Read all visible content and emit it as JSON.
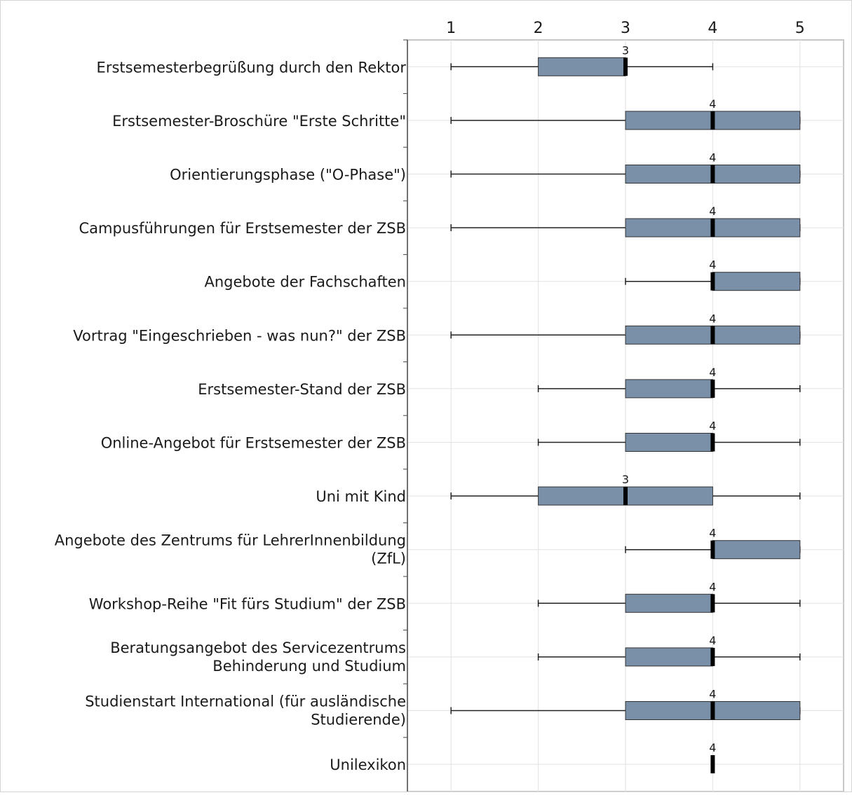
{
  "chart_data": {
    "type": "boxplot",
    "orientation": "horizontal",
    "x_ticks": [
      "1",
      "2",
      "3",
      "4",
      "5"
    ],
    "xlim": [
      0.5,
      5.5
    ],
    "grid": true,
    "box_color": "#7a8fa8",
    "median_color": "#000000",
    "rows": [
      {
        "label": [
          "Erstsemesterbegrüßung durch den Rektor"
        ],
        "min": 1,
        "q1": 2,
        "median": 3,
        "q3": 3,
        "max": 4,
        "median_label": "3"
      },
      {
        "label": [
          "Erstsemester-Broschüre \"Erste Schritte\""
        ],
        "min": 1,
        "q1": 3,
        "median": 4,
        "q3": 5,
        "max": 5,
        "median_label": "4"
      },
      {
        "label": [
          "Orientierungsphase (\"O-Phase\")"
        ],
        "min": 1,
        "q1": 3,
        "median": 4,
        "q3": 5,
        "max": 5,
        "median_label": "4"
      },
      {
        "label": [
          "Campusführungen für Erstsemester der ZSB"
        ],
        "min": 1,
        "q1": 3,
        "median": 4,
        "q3": 5,
        "max": 5,
        "median_label": "4"
      },
      {
        "label": [
          "Angebote der Fachschaften"
        ],
        "min": 3,
        "q1": 4,
        "median": 4,
        "q3": 5,
        "max": 5,
        "median_label": "4"
      },
      {
        "label": [
          "Vortrag \"Eingeschrieben - was nun?\" der ZSB"
        ],
        "min": 1,
        "q1": 3,
        "median": 4,
        "q3": 5,
        "max": 5,
        "median_label": "4"
      },
      {
        "label": [
          "Erstsemester-Stand der ZSB"
        ],
        "min": 2,
        "q1": 3,
        "median": 4,
        "q3": 4,
        "max": 5,
        "median_label": "4"
      },
      {
        "label": [
          "Online-Angebot für Erstsemester der ZSB"
        ],
        "min": 2,
        "q1": 3,
        "median": 4,
        "q3": 4,
        "max": 5,
        "median_label": "4"
      },
      {
        "label": [
          "Uni mit Kind"
        ],
        "min": 1,
        "q1": 2,
        "median": 3,
        "q3": 4,
        "max": 5,
        "median_label": "3"
      },
      {
        "label": [
          "Angebote des Zentrums für LehrerInnenbildung",
          "(ZfL)"
        ],
        "min": 3,
        "q1": 4,
        "median": 4,
        "q3": 5,
        "max": 5,
        "median_label": "4"
      },
      {
        "label": [
          "Workshop-Reihe \"Fit fürs Studium\" der ZSB"
        ],
        "min": 2,
        "q1": 3,
        "median": 4,
        "q3": 4,
        "max": 5,
        "median_label": "4"
      },
      {
        "label": [
          "Beratungsangebot des Servicezentrums",
          "Behinderung und Studium"
        ],
        "min": 2,
        "q1": 3,
        "median": 4,
        "q3": 4,
        "max": 5,
        "median_label": "4"
      },
      {
        "label": [
          "Studienstart International (für ausländische",
          "Studierende)"
        ],
        "min": 1,
        "q1": 3,
        "median": 4,
        "q3": 5,
        "max": 5,
        "median_label": "4"
      },
      {
        "label": [
          "Unilexikon"
        ],
        "min": 4,
        "q1": 4,
        "median": 4,
        "q3": 4,
        "max": 4,
        "median_label": "4"
      }
    ]
  }
}
